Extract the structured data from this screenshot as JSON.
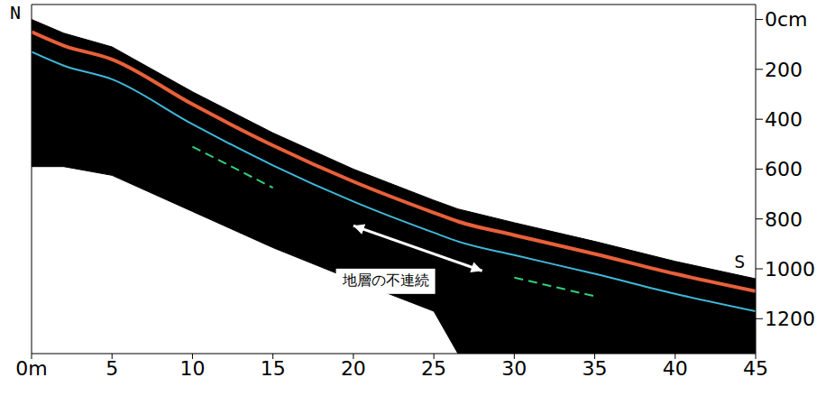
{
  "chart_data": {
    "type": "radargram",
    "x": [
      0,
      2,
      5,
      10,
      15,
      20,
      25,
      26.5,
      30,
      35,
      40,
      45
    ],
    "xlim": [
      0,
      45
    ],
    "xticks": [
      {
        "value": 0,
        "label": "0m"
      },
      5,
      10,
      15,
      20,
      25,
      30,
      35,
      40,
      45
    ],
    "ylim": [
      -60,
      1340
    ],
    "yticks": [
      {
        "value": 0,
        "label": "0cm"
      },
      200,
      400,
      600,
      800,
      1000,
      1200
    ],
    "band": {
      "color": "#000000",
      "top": [
        0,
        55,
        110,
        290,
        455,
        600,
        725,
        760,
        815,
        890,
        970,
        1040
      ],
      "bottom": [
        590,
        590,
        625,
        770,
        915,
        1045,
        1170,
        1340,
        1340,
        1340,
        1340,
        1340
      ]
    },
    "series": [
      {
        "color": "#e8603a",
        "line_style": "solid",
        "values": [
          50,
          105,
          160,
          340,
          505,
          650,
          775,
          810,
          865,
          940,
          1020,
          1090
        ]
      },
      {
        "color": "#3fb8d8",
        "line_style": "solid",
        "values": [
          130,
          185,
          240,
          420,
          585,
          730,
          855,
          890,
          945,
          1020,
          1100,
          1170
        ]
      },
      {
        "color": "#2fd07a",
        "line_style": "dashed",
        "values": [
          null,
          null,
          null,
          510,
          675,
          null,
          null,
          null,
          1035,
          1110,
          null,
          null
        ]
      }
    ],
    "annotations": [
      {
        "text": "N",
        "x": 0,
        "y": -60
      },
      {
        "text": "S",
        "x": 44,
        "y": 975
      },
      {
        "text": "地層の不連続",
        "x": 22,
        "y": 1050,
        "arrow": [
          [
            20,
            827
          ],
          [
            28,
            1008
          ]
        ]
      }
    ]
  }
}
